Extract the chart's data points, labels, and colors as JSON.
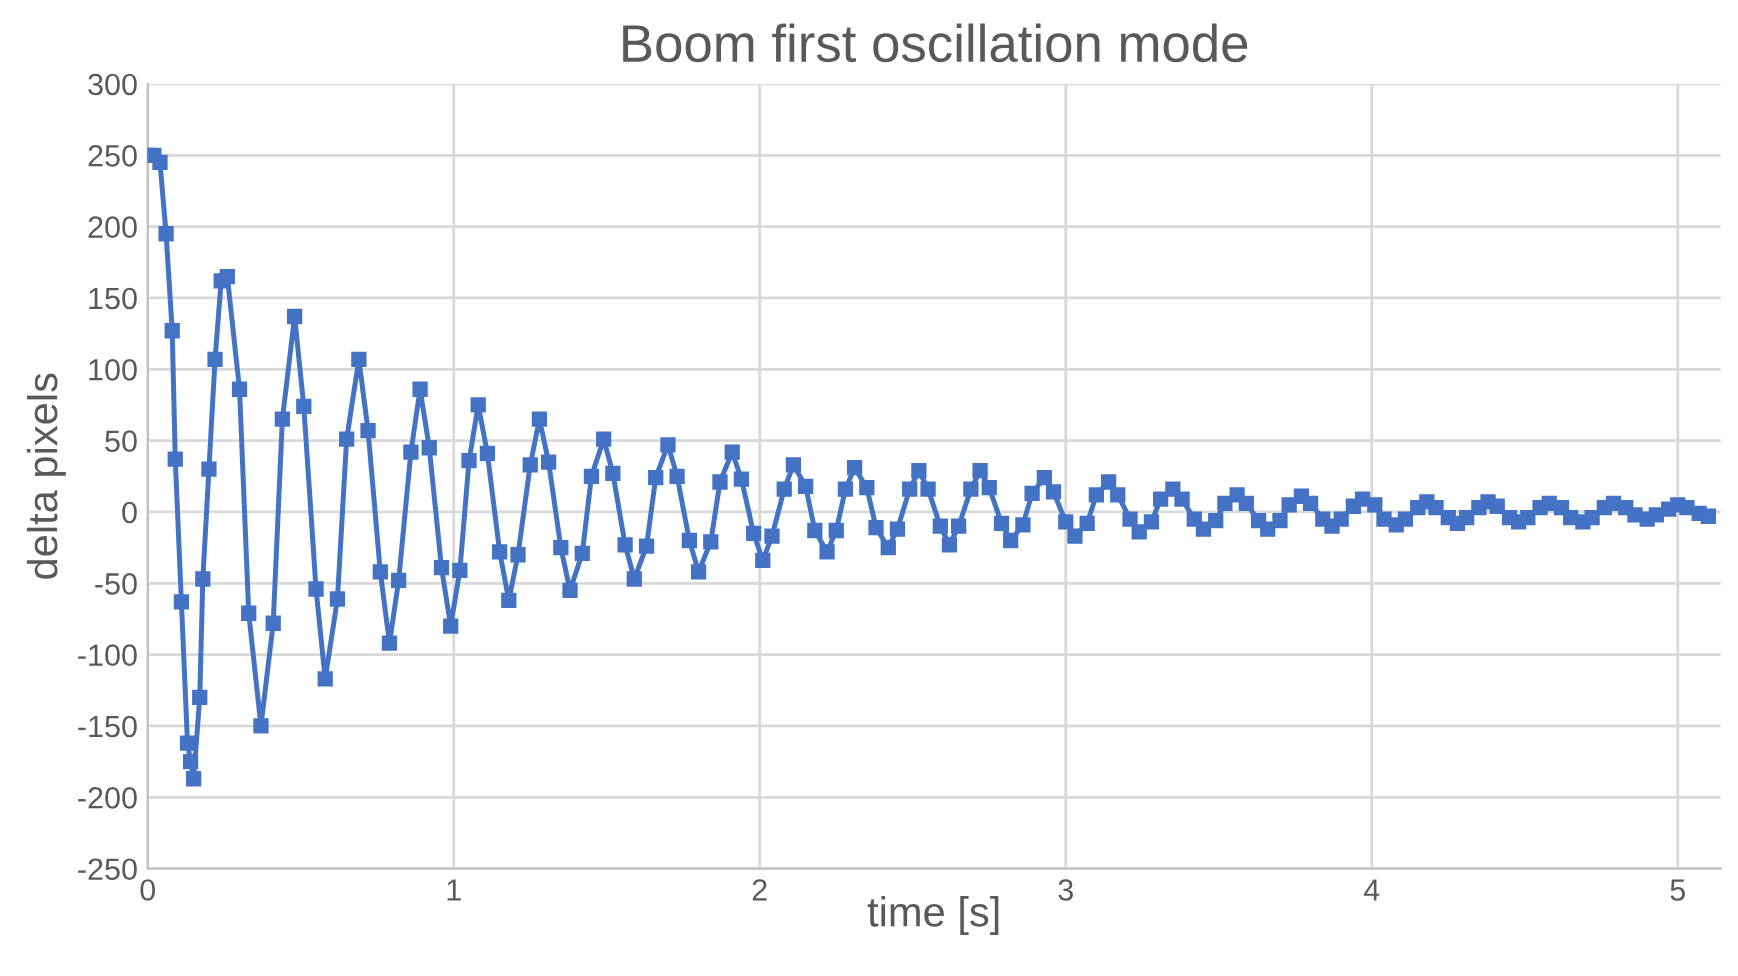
{
  "chart_data": {
    "type": "line",
    "title": "Boom first oscillation mode",
    "xlabel": "time [s]",
    "ylabel": "delta pixels",
    "xlim": [
      0,
      5.14
    ],
    "xticks": [
      0,
      1,
      2,
      3,
      4,
      5
    ],
    "ylim": [
      -250,
      300
    ],
    "yticks": [
      -250,
      -200,
      -150,
      -100,
      -50,
      0,
      50,
      100,
      150,
      200,
      250,
      300
    ],
    "grid": true,
    "marker": "square",
    "line_style": "solid",
    "series": [
      {
        "color": "#4472c4",
        "x": [
          0,
          0.02,
          0.04,
          0.06,
          0.08,
          0.09,
          0.11,
          0.13,
          0.14,
          0.15,
          0.17,
          0.18,
          0.2,
          0.22,
          0.24,
          0.26,
          0.3,
          0.33,
          0.37,
          0.41,
          0.44,
          0.48,
          0.51,
          0.55,
          0.58,
          0.62,
          0.65,
          0.69,
          0.72,
          0.76,
          0.79,
          0.82,
          0.86,
          0.89,
          0.92,
          0.96,
          0.99,
          1.02,
          1.05,
          1.08,
          1.11,
          1.15,
          1.18,
          1.21,
          1.25,
          1.28,
          1.31,
          1.35,
          1.38,
          1.42,
          1.45,
          1.49,
          1.52,
          1.56,
          1.59,
          1.63,
          1.66,
          1.7,
          1.73,
          1.77,
          1.8,
          1.84,
          1.87,
          1.91,
          1.94,
          1.98,
          2.01,
          2.04,
          2.08,
          2.11,
          2.15,
          2.18,
          2.22,
          2.25,
          2.28,
          2.31,
          2.35,
          2.38,
          2.42,
          2.45,
          2.49,
          2.52,
          2.55,
          2.59,
          2.62,
          2.65,
          2.69,
          2.72,
          2.75,
          2.79,
          2.82,
          2.86,
          2.89,
          2.93,
          2.96,
          3.0,
          3.03,
          3.07,
          3.1,
          3.14,
          3.17,
          3.21,
          3.24,
          3.28,
          3.31,
          3.35,
          3.38,
          3.42,
          3.45,
          3.49,
          3.52,
          3.56,
          3.59,
          3.63,
          3.66,
          3.7,
          3.73,
          3.77,
          3.8,
          3.84,
          3.87,
          3.9,
          3.94,
          3.97,
          4.01,
          4.04,
          4.08,
          4.11,
          4.15,
          4.18,
          4.21,
          4.25,
          4.28,
          4.31,
          4.35,
          4.38,
          4.41,
          4.45,
          4.48,
          4.51,
          4.55,
          4.58,
          4.62,
          4.65,
          4.69,
          4.72,
          4.76,
          4.79,
          4.83,
          4.86,
          4.9,
          4.93,
          4.97,
          5.0,
          5.03,
          5.07,
          5.1
        ],
        "values": [
          250,
          250,
          245,
          195,
          127,
          37,
          -63,
          -162,
          -175,
          -187,
          -130,
          -47,
          30,
          107,
          162,
          165,
          86,
          -71,
          -150,
          -78,
          65,
          137,
          74,
          -54,
          -117,
          -61,
          51,
          107,
          57,
          -42,
          -92,
          -48,
          42,
          86,
          45,
          -39,
          -80,
          -41,
          36,
          75,
          41,
          -28,
          -62,
          -30,
          33,
          65,
          35,
          -25,
          -55,
          -29,
          25,
          51,
          27,
          -23,
          -47,
          -24,
          24,
          47,
          25,
          -20,
          -42,
          -21,
          21,
          42,
          23,
          -15,
          -34,
          -17,
          16,
          33,
          18,
          -13,
          -28,
          -13,
          16,
          31,
          17,
          -11,
          -25,
          -12,
          16,
          29,
          16,
          -10,
          -23,
          -10,
          16,
          29,
          17,
          -8,
          -20,
          -9,
          13,
          24,
          14,
          -7,
          -17,
          -8,
          12,
          21,
          12,
          -5,
          -14,
          -7,
          9,
          16,
          9,
          -5,
          -12,
          -6,
          6,
          12,
          6,
          -6,
          -12,
          -6,
          5,
          11,
          6,
          -5,
          -10,
          -5,
          4,
          9,
          5,
          -5,
          -9,
          -5,
          3,
          7,
          3,
          -4,
          -8,
          -4,
          3,
          7,
          4,
          -4,
          -7,
          -4,
          3,
          6,
          3,
          -4,
          -7,
          -4,
          3,
          6,
          3,
          -2,
          -5,
          -2,
          2,
          5,
          3,
          -1,
          -3
        ]
      }
    ]
  }
}
